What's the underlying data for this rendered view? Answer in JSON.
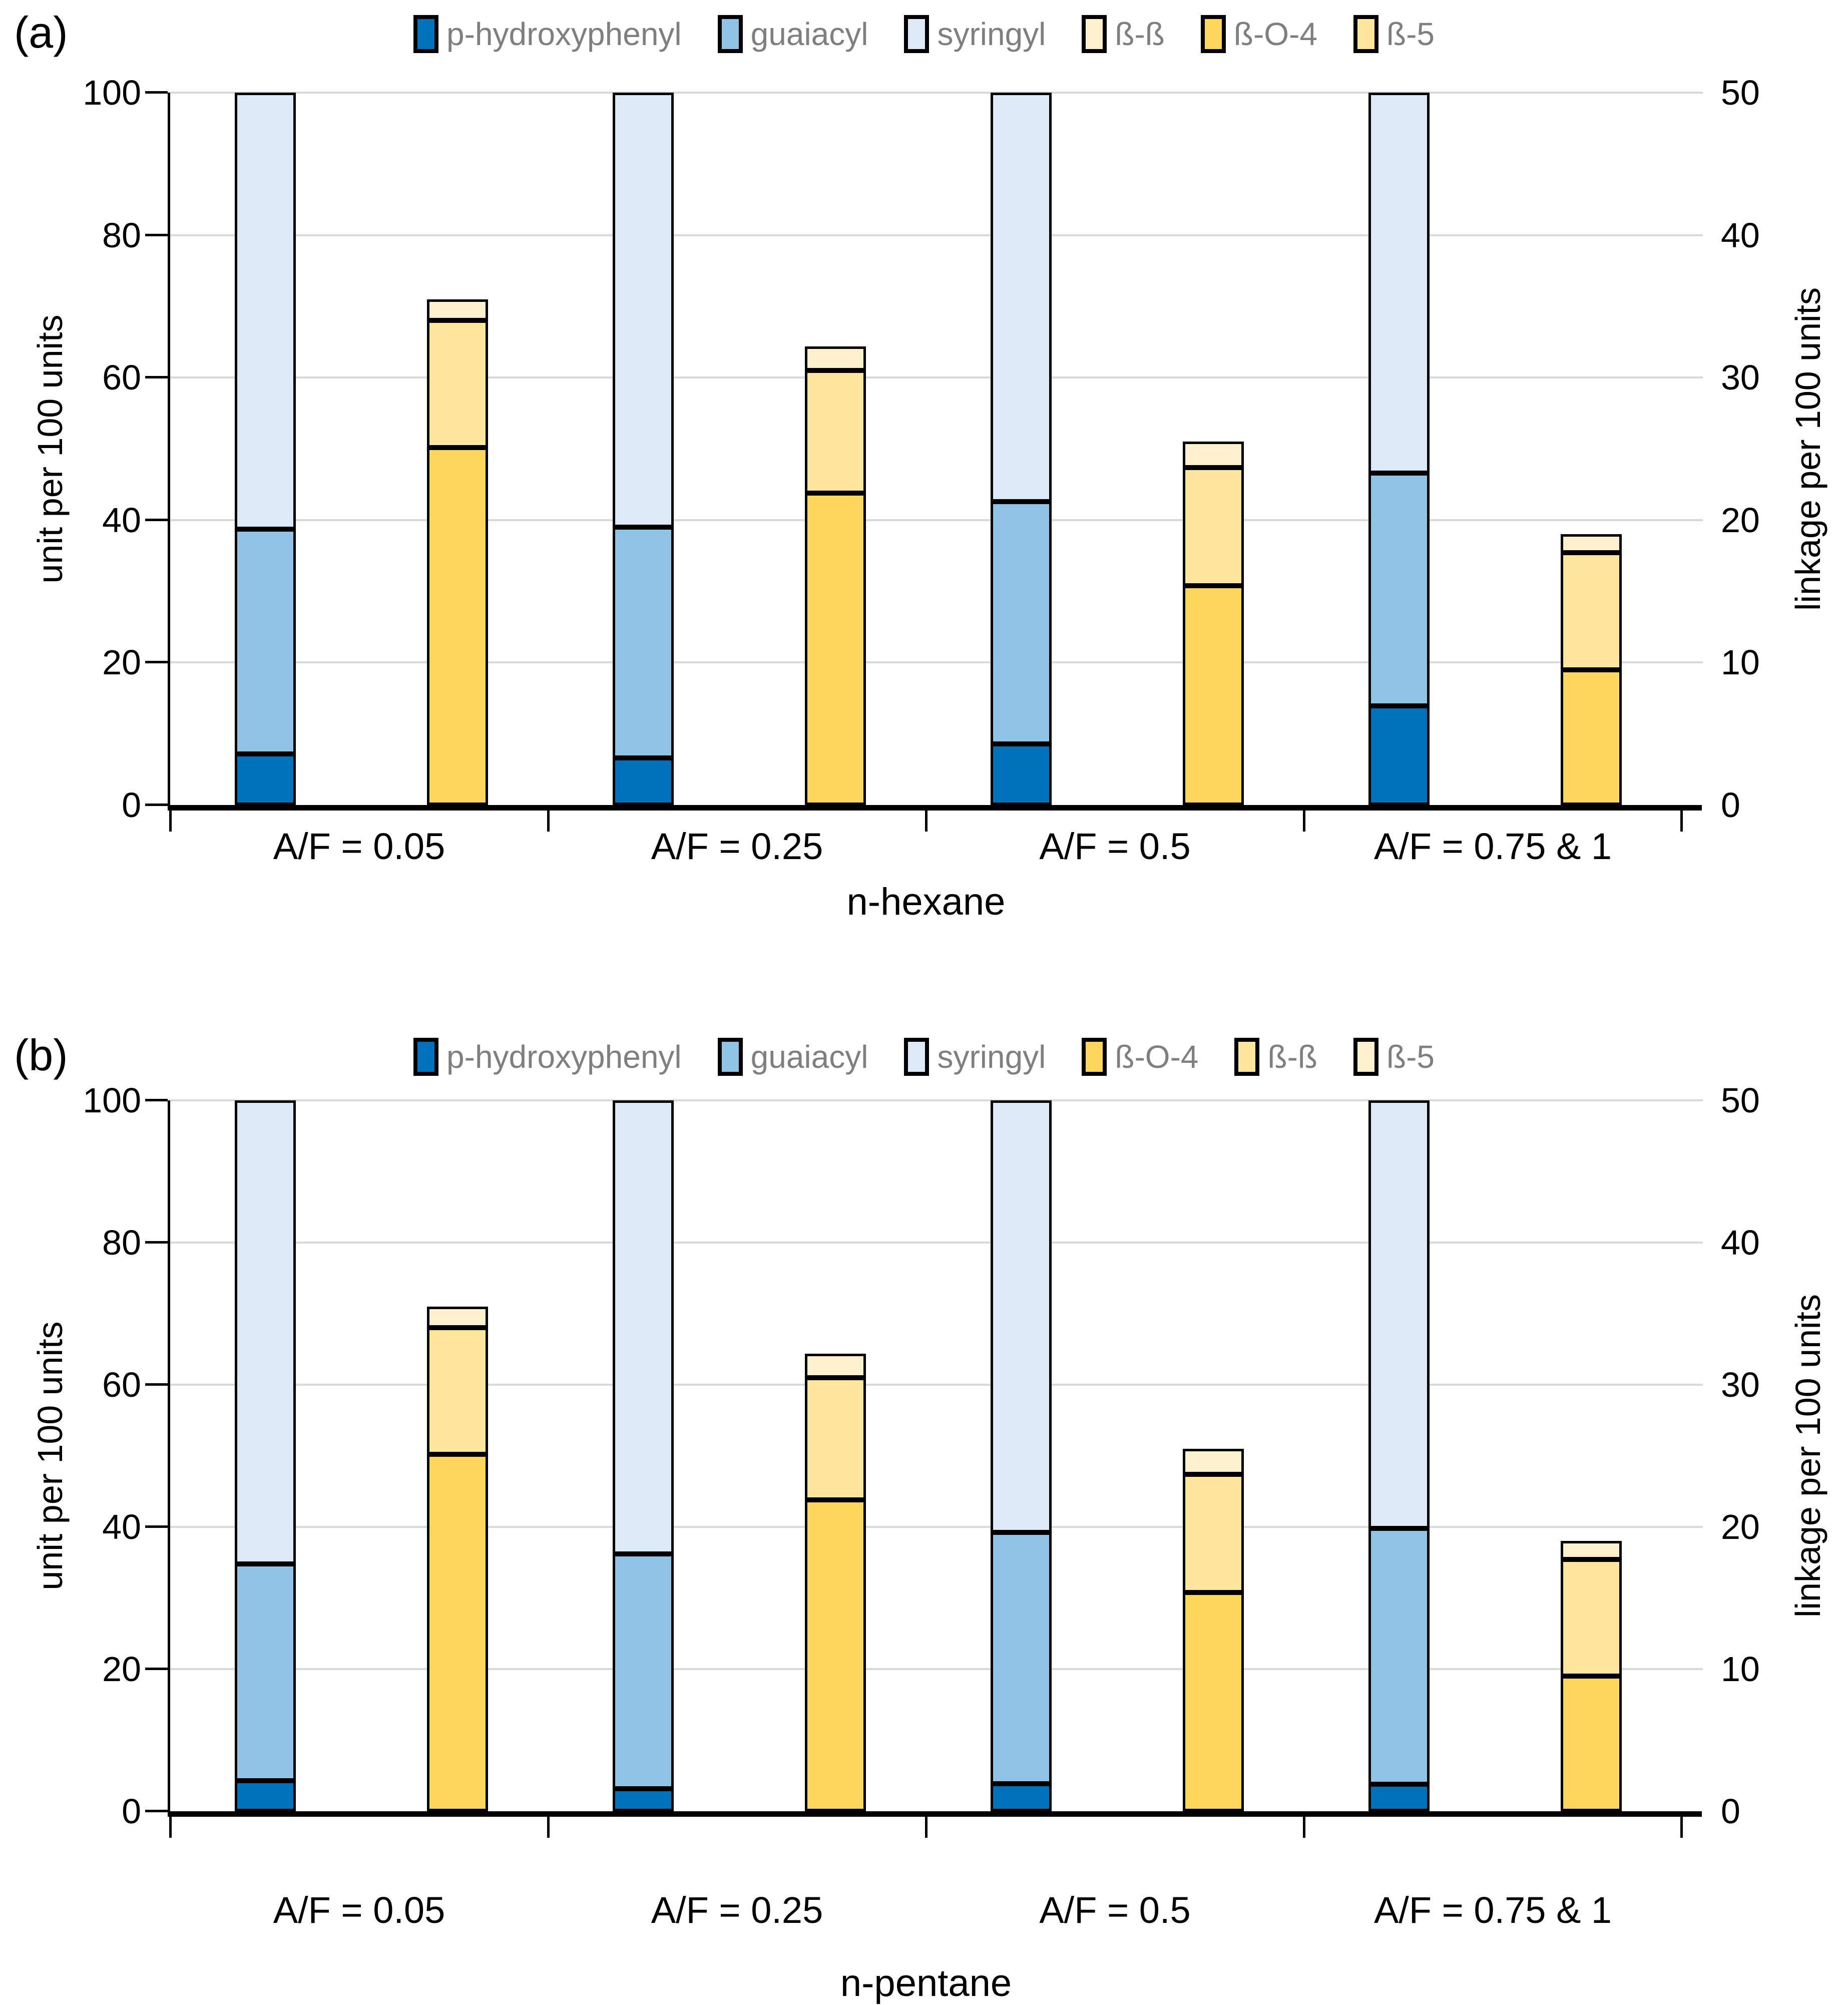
{
  "page": {
    "background": "#FFFFFF"
  },
  "colors": {
    "grid": "#D9D9D9",
    "axis": "#000000",
    "legend_text": "#7F7F7F"
  },
  "chart_data": [
    {
      "type": "bar",
      "stacked": true,
      "panel_label": "(a)",
      "title": "n-hexane",
      "categories": [
        "A/F = 0.05",
        "A/F = 0.25",
        "A/F = 0.5",
        "A/F = 0.75 & 1"
      ],
      "left_axis": {
        "label": "unit per 100 units",
        "min": 0,
        "max": 100,
        "ticks": [
          0,
          20,
          40,
          60,
          80,
          100
        ]
      },
      "right_axis": {
        "label": "linkage per 100 units",
        "min": 0,
        "max": 50,
        "ticks": [
          0,
          10,
          20,
          30,
          40,
          50
        ]
      },
      "grid": "on",
      "legend_position": "top",
      "legend": [
        {
          "label": "p-hydroxyphenyl",
          "color": "#0072BB"
        },
        {
          "label": "guaiacyl",
          "color": "#8FC4E7"
        },
        {
          "label": "syringyl",
          "color": "#DCE9F6"
        },
        {
          "label": "ß-ß",
          "color": "#FEF0CC"
        },
        {
          "label": "ß-O-4",
          "color": "#FFD65C"
        },
        {
          "label": "ß-5",
          "color": "#FEE59B"
        }
      ],
      "unit_series": [
        {
          "name": "p-hydroxyphenyl",
          "color": "#0072BB",
          "axis": "left",
          "values": [
            7.2,
            6.6,
            8.6,
            13.9
          ]
        },
        {
          "name": "guaiacyl",
          "color": "#8FC4E7",
          "axis": "left",
          "values": [
            31.5,
            32.4,
            34.0,
            32.7
          ]
        },
        {
          "name": "syringyl",
          "color": "#DCE9F6",
          "axis": "left",
          "values": [
            61.3,
            61.0,
            57.4,
            53.4
          ]
        }
      ],
      "linkage_series": [
        {
          "name": "ß-O-4",
          "color": "#FFD65C",
          "axis": "right",
          "values": [
            25.1,
            21.9,
            15.4,
            9.5
          ]
        },
        {
          "name": "ß-5",
          "color": "#FEE59B",
          "axis": "right",
          "values": [
            8.9,
            8.6,
            8.3,
            8.2
          ]
        },
        {
          "name": "ß-ß",
          "color": "#FEF0CC",
          "axis": "right",
          "values": [
            1.5,
            1.7,
            1.8,
            1.3
          ]
        }
      ]
    },
    {
      "type": "bar",
      "stacked": true,
      "panel_label": "(b)",
      "title": "n-pentane",
      "categories": [
        "A/F = 0.05",
        "A/F = 0.25",
        "A/F = 0.5",
        "A/F = 0.75 & 1"
      ],
      "left_axis": {
        "label": "unit per 100 units",
        "min": 0,
        "max": 100,
        "ticks": [
          0,
          20,
          40,
          60,
          80,
          100
        ]
      },
      "right_axis": {
        "label": "linkage per 100 units",
        "min": 0,
        "max": 50,
        "ticks": [
          0,
          10,
          20,
          30,
          40,
          50
        ]
      },
      "grid": "on",
      "legend_position": "top",
      "legend": [
        {
          "label": "p-hydroxyphenyl",
          "color": "#0072BB"
        },
        {
          "label": "guaiacyl",
          "color": "#8FC4E7"
        },
        {
          "label": "syringyl",
          "color": "#DCE9F6"
        },
        {
          "label": "ß-O-4",
          "color": "#FFD65C"
        },
        {
          "label": "ß-ß",
          "color": "#FEE59B"
        },
        {
          "label": "ß-5",
          "color": "#FEF0CC"
        }
      ],
      "unit_series": [
        {
          "name": "p-hydroxyphenyl",
          "color": "#0072BB",
          "axis": "left",
          "values": [
            4.3,
            3.2,
            3.9,
            3.8
          ]
        },
        {
          "name": "guaiacyl",
          "color": "#8FC4E7",
          "axis": "left",
          "values": [
            30.5,
            33.0,
            35.3,
            36.0
          ]
        },
        {
          "name": "syringyl",
          "color": "#DCE9F6",
          "axis": "left",
          "values": [
            65.2,
            63.8,
            60.8,
            60.2
          ]
        }
      ],
      "linkage_series": [
        {
          "name": "ß-O-4",
          "color": "#FFD65C",
          "axis": "right",
          "values": [
            25.1,
            21.9,
            15.4,
            9.5
          ]
        },
        {
          "name": "ß-ß",
          "color": "#FEE59B",
          "axis": "right",
          "values": [
            8.9,
            8.6,
            8.3,
            8.2
          ]
        },
        {
          "name": "ß-5",
          "color": "#FEF0CC",
          "axis": "right",
          "values": [
            1.5,
            1.7,
            1.8,
            1.3
          ]
        }
      ]
    }
  ]
}
